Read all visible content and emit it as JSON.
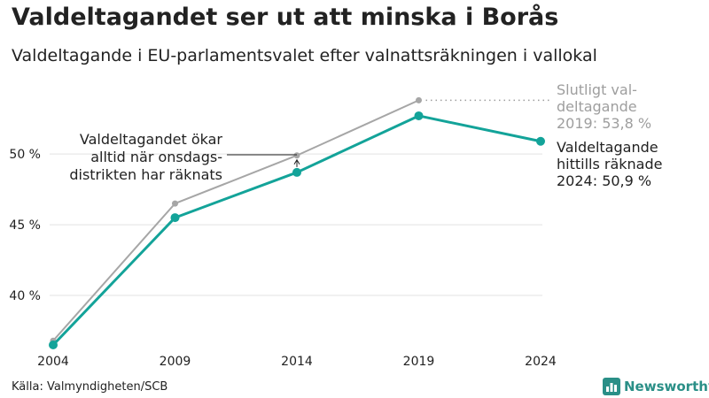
{
  "header": {
    "title": "Valdeltagandet ser ut att minska i Borås",
    "subtitle": "Valdeltagande i EU-parlamentsvalet efter valnattsräkningen i vallokal"
  },
  "footer": {
    "source": "Källa: Valmyndigheten/SCB",
    "brand": "Newsworthy",
    "brand_icon": "bar-chart-logo-icon"
  },
  "colors": {
    "counted": "#13a399",
    "final": "#a6a6a6",
    "grid": "#e3e3e3",
    "text": "#222222",
    "muted": "#9e9e9e",
    "brand": "#2a8f87"
  },
  "chart_data": {
    "type": "line",
    "x": [
      2004,
      2009,
      2014,
      2019,
      2024
    ],
    "xticks": [
      "2004",
      "2009",
      "2014",
      "2019",
      "2024"
    ],
    "yticks": [
      40,
      45,
      50
    ],
    "ytick_labels": [
      "40 %",
      "45 %",
      "50 %"
    ],
    "ylim": [
      35.5,
      56.2
    ],
    "grid": true,
    "series": [
      {
        "name": "Slutligt valdeltagande",
        "values": [
          36.8,
          46.5,
          49.9,
          53.8,
          null
        ],
        "color": "#a6a6a6"
      },
      {
        "name": "Valdeltagande hittills räknade",
        "values": [
          36.5,
          45.5,
          48.7,
          52.7,
          50.9
        ],
        "color": "#13a399"
      }
    ],
    "annotations": {
      "difference_note": [
        "Valdeltagandet ökar",
        "alltid när onsdags-",
        "distrikten har räknats"
      ],
      "final_label": [
        "Slutligt val-",
        "deltagande",
        "2019: 53,8 %"
      ],
      "counted_label": [
        "Valdeltagande",
        "hittills räknade",
        "2024: 50,9 %"
      ]
    }
  }
}
